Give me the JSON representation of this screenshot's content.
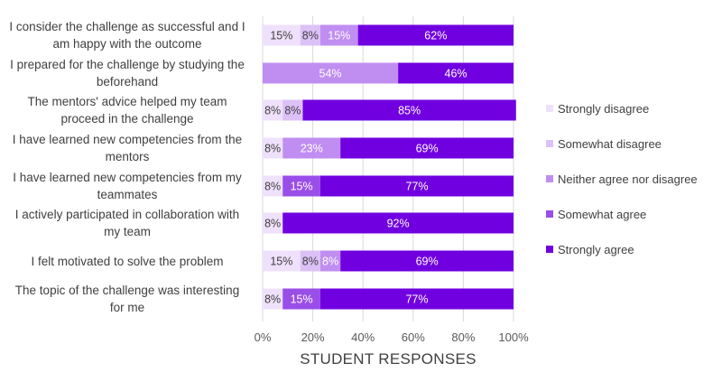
{
  "chart_data": {
    "type": "bar",
    "orientation": "horizontal",
    "stacked": "percent",
    "title": "",
    "xlabel": "STUDENT RESPONSES",
    "ylabel": "",
    "xlim": [
      0,
      100
    ],
    "x_ticks": [
      "0%",
      "20%",
      "40%",
      "60%",
      "80%",
      "100%"
    ],
    "grid": true,
    "legend_position": "right",
    "categories": [
      "I consider the challenge as successful and I am happy with the outcome",
      "I prepared for the challenge by studying the beforehand",
      "The mentors' advice helped my team proceed in the challenge",
      "I have learned new competencies from the mentors",
      "I have learned new competencies from my teammates",
      "I actively participated in collaboration with my team",
      "I felt motivated to solve the problem",
      "The topic of the challenge was interesting for me"
    ],
    "series": [
      {
        "name": "Strongly disagree",
        "color": "#efe1fb",
        "label_color": "#404040",
        "values": [
          15,
          0,
          8,
          8,
          8,
          8,
          15,
          8
        ]
      },
      {
        "name": "Somewhat disagree",
        "color": "#dcc1f7",
        "label_color": "#404040",
        "values": [
          8,
          0,
          8,
          0,
          0,
          0,
          8,
          0
        ]
      },
      {
        "name": "Neither agree nor disagree",
        "color": "#c08ef1",
        "label_color": "#ffffff",
        "values": [
          15,
          54,
          0,
          23,
          0,
          0,
          8,
          0
        ]
      },
      {
        "name": "Somewhat agree",
        "color": "#9a4ee8",
        "label_color": "#ffffff",
        "values": [
          0,
          0,
          0,
          0,
          15,
          0,
          0,
          15
        ]
      },
      {
        "name": "Strongly agree",
        "color": "#7100e0",
        "label_color": "#ffffff",
        "values": [
          62,
          46,
          85,
          69,
          77,
          92,
          69,
          77
        ]
      }
    ],
    "data_labels": [
      [
        "15%",
        "8%",
        "15%",
        "62%"
      ],
      [
        "54%",
        "46%"
      ],
      [
        "8%",
        "8%",
        "85%"
      ],
      [
        "8%",
        "23%",
        "69%"
      ],
      [
        "8%",
        "15%",
        "77%"
      ],
      [
        "8%",
        "92%"
      ],
      [
        "15%",
        "8%",
        "8%",
        "69%"
      ],
      [
        "8%",
        "15%",
        "77%"
      ]
    ]
  },
  "category_lines": [
    [
      "I consider the challenge as successful and I",
      "am happy with the outcome"
    ],
    [
      "I prepared for the challenge by studying the",
      "beforehand"
    ],
    [
      "The mentors' advice helped my team",
      "proceed in the challenge"
    ],
    [
      "I have learned new competencies from the",
      "mentors"
    ],
    [
      "I have learned new competencies from my",
      "teammates"
    ],
    [
      "I actively participated in collaboration with",
      "my team"
    ],
    [
      "I felt motivated to solve the problem"
    ],
    [
      "The topic of the challenge was interesting",
      "for me"
    ]
  ]
}
